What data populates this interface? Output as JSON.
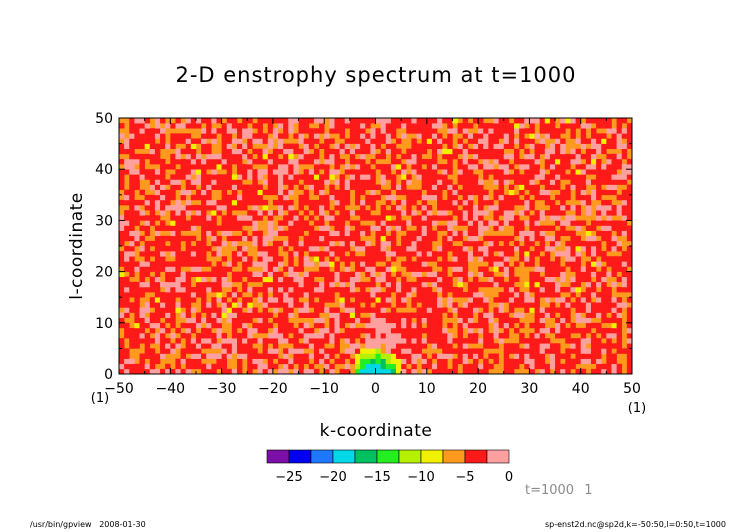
{
  "chart_data": {
    "type": "heatmap",
    "title": "2-D enstrophy spectrum at t=1000",
    "xlabel": "k-coordinate",
    "ylabel": "l-coordinate",
    "xlim": [
      -50,
      50
    ],
    "ylim": [
      0,
      50
    ],
    "x_ticks": [
      "-50",
      "-40",
      "-30",
      "-20",
      "-10",
      "0",
      "10",
      "20",
      "30",
      "40",
      "50"
    ],
    "y_ticks": [
      "0",
      "10",
      "20",
      "30",
      "40",
      "50"
    ],
    "x_unit": "(1)",
    "x_unit_right": "(1)",
    "colorbar": {
      "levels": [
        "-25",
        "-20",
        "-15",
        "-10",
        "-5",
        "0"
      ],
      "colors": [
        "#7b0fa8",
        "#0000f0",
        "#1e78ff",
        "#00d8e8",
        "#00c060",
        "#22ee22",
        "#b4f000",
        "#f0f000",
        "#ff9a1e",
        "#ff1a1a",
        "#ffa0a0"
      ]
    },
    "annotation_time": "t=1000",
    "annotation_step": "1",
    "footer_left": "/usr/bin/gpview   2008-01-30",
    "footer_right": "sp-enst2d.nc@sp2d,k=-50:50,l=0:50,t=1000",
    "structure": {
      "background_level_range": [
        -5,
        -2.5
      ],
      "secondary_level_range": [
        -7.5,
        -5
      ],
      "peak_level_range": [
        -2.5,
        0
      ],
      "peak_region_k": [
        -2,
        4
      ],
      "peak_region_l": [
        5,
        11
      ],
      "minimum_level_range": [
        -25,
        -20
      ],
      "minimum_at": {
        "k": 0,
        "l": 0
      }
    }
  }
}
